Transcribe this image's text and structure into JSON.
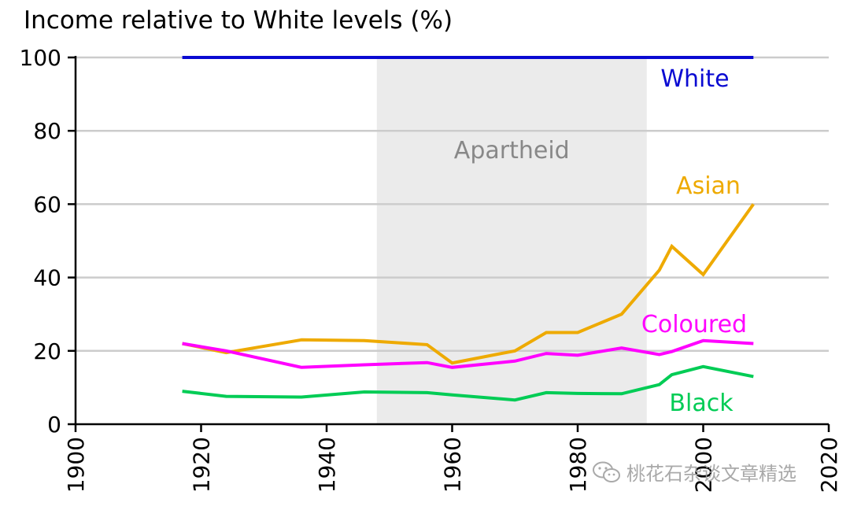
{
  "title": "Income relative to White levels (%)",
  "watermark": {
    "text": "桃花石杂谈文章精选",
    "icon": "wechat-icon"
  },
  "colors": {
    "white_series": "#0a0ad2",
    "asian_series": "#eeaa00",
    "coloured_series": "#ff00ff",
    "black_series": "#00cc55",
    "apartheid_band": "#ebebeb",
    "apartheid_text": "#888888",
    "grid": "#cccccc"
  },
  "chart_data": {
    "type": "line",
    "xlim": [
      1900,
      2020
    ],
    "ylim": [
      0,
      100
    ],
    "x_ticks": [
      1900,
      1920,
      1940,
      1960,
      1980,
      2000,
      2020
    ],
    "y_ticks": [
      0,
      20,
      40,
      60,
      80,
      100
    ],
    "grid": "horizontal",
    "annotations": [
      {
        "text": "Apartheid",
        "x_start": 1948,
        "x_end": 1991
      }
    ],
    "series": [
      {
        "name": "White",
        "color": "#0a0ad2",
        "points": [
          [
            1917,
            100
          ],
          [
            2008,
            100
          ]
        ]
      },
      {
        "name": "Asian",
        "color": "#eeaa00",
        "points": [
          [
            1917,
            22
          ],
          [
            1924,
            19.5
          ],
          [
            1936,
            23
          ],
          [
            1946,
            22.8
          ],
          [
            1956,
            21.7
          ],
          [
            1960,
            16.7
          ],
          [
            1970,
            20
          ],
          [
            1975,
            25
          ],
          [
            1980,
            25
          ],
          [
            1987,
            30
          ],
          [
            1993,
            42
          ],
          [
            1995,
            48.5
          ],
          [
            2000,
            40.8
          ],
          [
            2008,
            60
          ]
        ]
      },
      {
        "name": "Coloured",
        "color": "#ff00ff",
        "points": [
          [
            1917,
            22
          ],
          [
            1924,
            20
          ],
          [
            1936,
            15.5
          ],
          [
            1946,
            16.2
          ],
          [
            1956,
            16.8
          ],
          [
            1960,
            15.5
          ],
          [
            1970,
            17.2
          ],
          [
            1975,
            19.3
          ],
          [
            1980,
            18.8
          ],
          [
            1987,
            20.8
          ],
          [
            1993,
            19
          ],
          [
            1995,
            19.8
          ],
          [
            2000,
            22.8
          ],
          [
            2008,
            22
          ]
        ]
      },
      {
        "name": "Black",
        "color": "#00cc55",
        "points": [
          [
            1917,
            9
          ],
          [
            1924,
            7.6
          ],
          [
            1936,
            7.4
          ],
          [
            1946,
            8.8
          ],
          [
            1956,
            8.6
          ],
          [
            1960,
            8
          ],
          [
            1970,
            6.6
          ],
          [
            1975,
            8.6
          ],
          [
            1980,
            8.4
          ],
          [
            1987,
            8.3
          ],
          [
            1993,
            10.8
          ],
          [
            1995,
            13.5
          ],
          [
            2000,
            15.7
          ],
          [
            2008,
            13
          ]
        ]
      }
    ]
  }
}
